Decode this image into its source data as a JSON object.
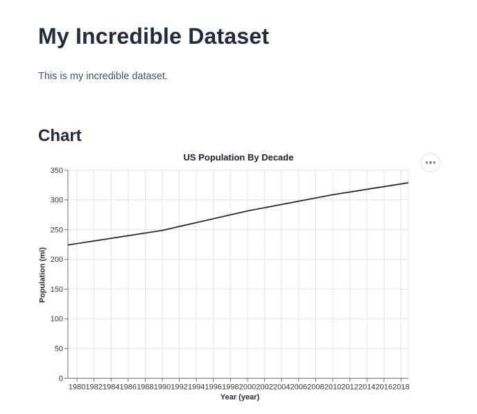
{
  "page": {
    "title": "My Incredible Dataset",
    "intro": "This is my incredible dataset.",
    "section_heading": "Chart"
  },
  "chart": {
    "menu_icon": "ellipsis-icon"
  },
  "chart_data": {
    "type": "line",
    "title": "US Population By Decade",
    "xlabel": "Year (year)",
    "ylabel": "Population (mi)",
    "x": [
      1980,
      1990,
      2000,
      2010,
      2020
    ],
    "y": [
      226.5,
      248.7,
      281.4,
      308.7,
      331.4
    ],
    "x_tick_labels": [
      "1980",
      "1982",
      "1984",
      "1986",
      "1988",
      "1990",
      "1992",
      "1994",
      "1996",
      "1998",
      "2000",
      "2002",
      "2004",
      "2006",
      "2008",
      "2010",
      "2012",
      "2014",
      "2016",
      "2018"
    ],
    "y_tick_values": [
      0,
      50,
      100,
      150,
      200,
      250,
      300,
      350
    ],
    "ylim": [
      0,
      350
    ],
    "xlim_displayed": [
      1979,
      2019
    ],
    "grid": true,
    "legend": false,
    "line_color": "#1b1e23"
  },
  "colors": {
    "heading": "#212b3a",
    "body_text": "#475467",
    "chart_title": "#20232a",
    "tick_label": "#36393d",
    "axis_title": "#2b2e33",
    "axis_line": "#6e7079",
    "gridline": "#e2e3e6",
    "menu_dot": "#8e8e8e",
    "menu_border": "#e4e4e4"
  }
}
